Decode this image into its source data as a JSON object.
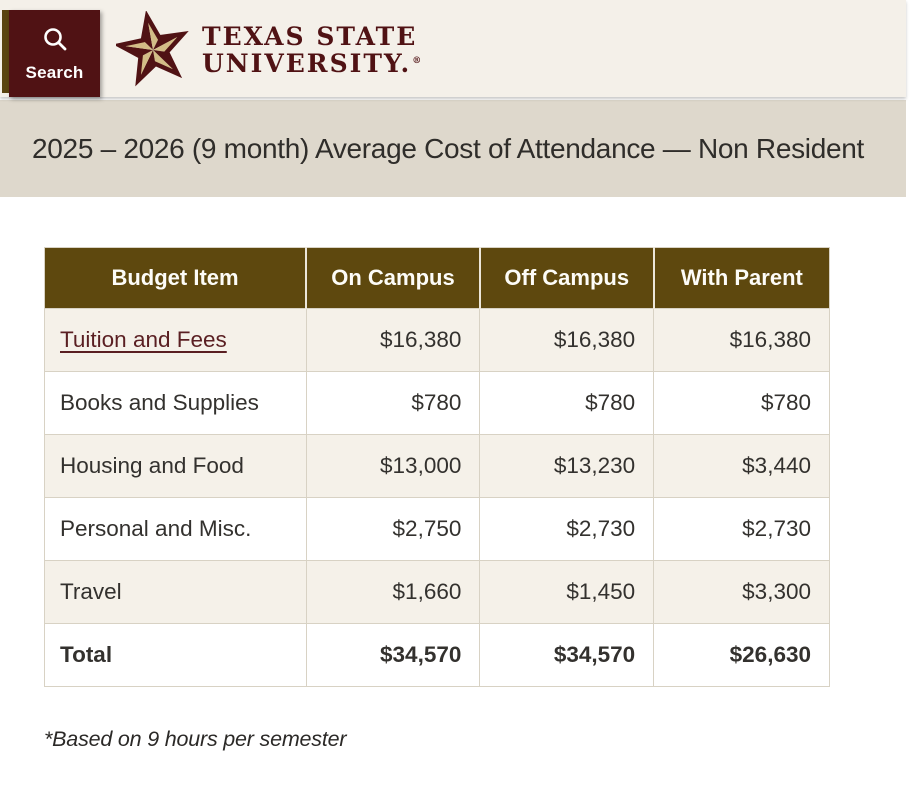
{
  "header": {
    "search_label": "Search",
    "logo_line1": "TEXAS STATE",
    "logo_line2": "UNIVERSITY.",
    "registered": "®"
  },
  "title_band": {
    "title": "2025 – 2026 (9 month) Average Cost of Attendance — Non Resident"
  },
  "table": {
    "columns": [
      "Budget Item",
      "On Campus",
      "Off Campus",
      "With Parent"
    ],
    "rows": [
      {
        "label": "Tuition and Fees",
        "link": true,
        "bold": false,
        "values": [
          "$16,380",
          "$16,380",
          "$16,380"
        ]
      },
      {
        "label": "Books and Supplies",
        "link": false,
        "bold": false,
        "values": [
          "$780",
          "$780",
          "$780"
        ]
      },
      {
        "label": "Housing and Food",
        "link": false,
        "bold": false,
        "values": [
          "$13,000",
          "$13,230",
          "$3,440"
        ]
      },
      {
        "label": "Personal and Misc.",
        "link": false,
        "bold": false,
        "values": [
          "$2,750",
          "$2,730",
          "$2,730"
        ]
      },
      {
        "label": "Travel",
        "link": false,
        "bold": false,
        "values": [
          "$1,660",
          "$1,450",
          "$3,300"
        ]
      },
      {
        "label": "Total",
        "link": false,
        "bold": true,
        "values": [
          "$34,570",
          "$34,570",
          "$26,630"
        ]
      }
    ]
  },
  "footnote": "*Based on 9 hours per semester",
  "colors": {
    "maroon": "#501214",
    "maroon-link": "#5a1f22",
    "olive": "#5e480e",
    "olive-strip": "#5a4410",
    "cream": "#f4f0e9",
    "band": "#ded8cc",
    "row-beige": "#f5f1e9",
    "border": "#d8d2c4",
    "gold": "#d3bd87"
  }
}
